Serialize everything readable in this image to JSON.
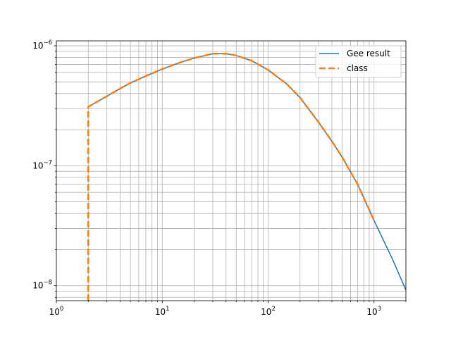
{
  "chart_data": {
    "type": "line",
    "xscale": "log",
    "yscale": "log",
    "xlim": [
      1,
      2000
    ],
    "ylim": [
      7.5e-09,
      1.1e-06
    ],
    "grid": "major-and-minor",
    "legend_position": "top-right",
    "x_ticks": [
      {
        "value": 1,
        "base": "10",
        "exp": "0"
      },
      {
        "value": 10,
        "base": "10",
        "exp": "1"
      },
      {
        "value": 100,
        "base": "10",
        "exp": "2"
      },
      {
        "value": 1000,
        "base": "10",
        "exp": "3"
      }
    ],
    "y_ticks": [
      {
        "value": 1e-08,
        "base": "10",
        "exp": "−8"
      },
      {
        "value": 1e-07,
        "base": "10",
        "exp": "−7"
      },
      {
        "value": 1e-06,
        "base": "10",
        "exp": "−6"
      }
    ],
    "series": [
      {
        "name": "Gee result",
        "color": "#1f77b4",
        "style": "solid",
        "points": [
          [
            2,
            3.1e-07
          ],
          [
            3,
            3.8e-07
          ],
          [
            4,
            4.4e-07
          ],
          [
            5,
            4.9e-07
          ],
          [
            7,
            5.6e-07
          ],
          [
            10,
            6.4e-07
          ],
          [
            15,
            7.3e-07
          ],
          [
            20,
            7.9e-07
          ],
          [
            30,
            8.6e-07
          ],
          [
            40,
            8.6e-07
          ],
          [
            50,
            8.3e-07
          ],
          [
            70,
            7.5e-07
          ],
          [
            100,
            6.3e-07
          ],
          [
            150,
            4.8e-07
          ],
          [
            200,
            3.7e-07
          ],
          [
            300,
            2.3e-07
          ],
          [
            400,
            1.6e-07
          ],
          [
            500,
            1.18e-07
          ],
          [
            700,
            7e-08
          ],
          [
            1000,
            3.5e-08
          ],
          [
            1500,
            1.65e-08
          ],
          [
            2000,
            9.2e-09
          ]
        ]
      },
      {
        "name": "class",
        "color": "#ff7f0e",
        "style": "dashed",
        "points": [
          [
            2,
            7.5e-09
          ],
          [
            2,
            3.1e-07
          ],
          [
            3,
            3.8e-07
          ],
          [
            4,
            4.4e-07
          ],
          [
            5,
            4.9e-07
          ],
          [
            7,
            5.6e-07
          ],
          [
            10,
            6.4e-07
          ],
          [
            15,
            7.3e-07
          ],
          [
            20,
            7.9e-07
          ],
          [
            30,
            8.6e-07
          ],
          [
            40,
            8.6e-07
          ],
          [
            50,
            8.3e-07
          ],
          [
            70,
            7.5e-07
          ],
          [
            100,
            6.3e-07
          ],
          [
            150,
            4.8e-07
          ],
          [
            200,
            3.7e-07
          ],
          [
            300,
            2.3e-07
          ],
          [
            400,
            1.6e-07
          ],
          [
            500,
            1.18e-07
          ],
          [
            700,
            7e-08
          ],
          [
            1000,
            3.5e-08
          ]
        ]
      }
    ]
  }
}
